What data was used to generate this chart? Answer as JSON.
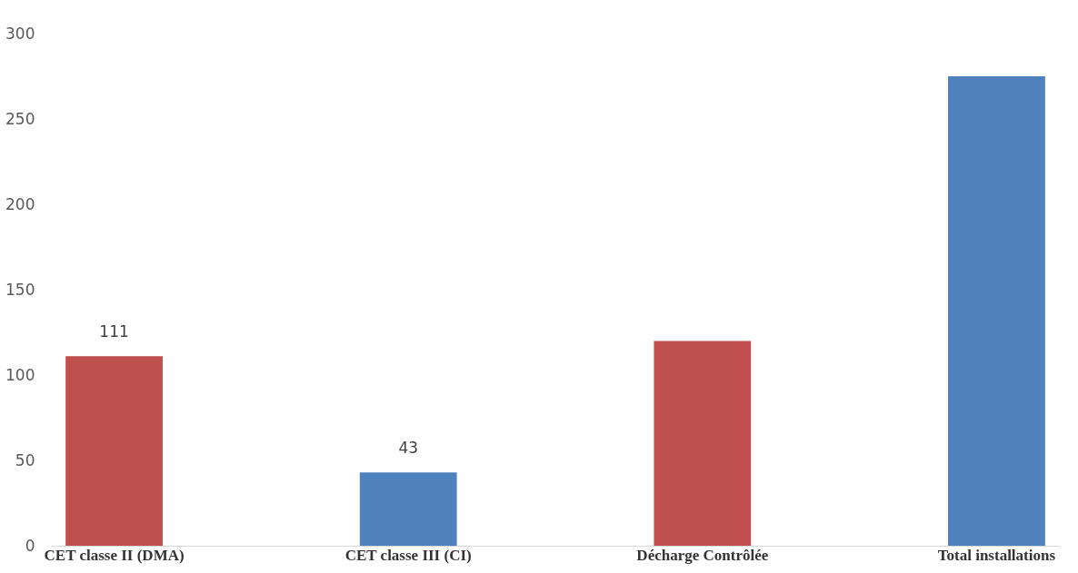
{
  "chart_data": {
    "type": "bar",
    "categories": [
      "CET classe II (DMA)",
      "CET classe III (CI)",
      "Décharge Contrôlée",
      "Total installations"
    ],
    "values": [
      111,
      43,
      120,
      275
    ],
    "colors": [
      "#c0504d",
      "#4f81bd",
      "#c0504d",
      "#4f81bd"
    ],
    "value_labels": [
      "111",
      "43",
      null,
      null
    ],
    "ylim": [
      0,
      300
    ],
    "yticks": [
      0,
      50,
      100,
      150,
      200,
      250,
      300
    ],
    "grid": false
  }
}
